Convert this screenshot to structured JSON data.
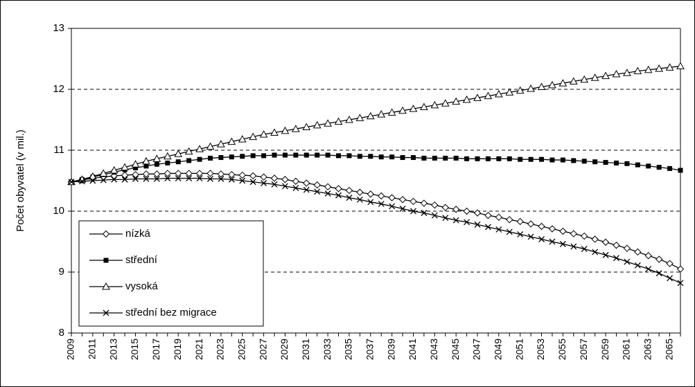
{
  "chart_data": {
    "type": "line",
    "ylabel": "Počet obyvatel (v mil.)",
    "categories": [
      "2009",
      null,
      "2011",
      null,
      "2013",
      null,
      "2015",
      null,
      "2017",
      null,
      "2019",
      null,
      "2021",
      null,
      "2023",
      null,
      "2025",
      null,
      "2027",
      null,
      "2029",
      null,
      "2031",
      null,
      "2033",
      null,
      "2035",
      null,
      "2037",
      null,
      "2039",
      null,
      "2041",
      null,
      "2043",
      null,
      "2045",
      null,
      "2047",
      null,
      "2049",
      null,
      "2051",
      null,
      "2053",
      null,
      "2055",
      null,
      "2057",
      null,
      "2059",
      null,
      "2061",
      null,
      "2063",
      null,
      "2065",
      null
    ],
    "ylim": [
      8,
      13
    ],
    "yticks": [
      8,
      9,
      10,
      11,
      12,
      13
    ],
    "grid": true,
    "legend": "lower left",
    "series": [
      {
        "name": "nízká",
        "color": "#000000",
        "marker": "diamond",
        "values": [
          10.48,
          10.51,
          10.54,
          10.56,
          10.58,
          10.59,
          10.6,
          10.61,
          10.61,
          10.62,
          10.62,
          10.62,
          10.62,
          10.62,
          10.61,
          10.6,
          10.59,
          10.58,
          10.56,
          10.54,
          10.52,
          10.49,
          10.46,
          10.43,
          10.4,
          10.37,
          10.34,
          10.31,
          10.28,
          10.25,
          10.22,
          10.19,
          10.16,
          10.13,
          10.1,
          10.06,
          10.03,
          10.0,
          9.97,
          9.93,
          9.9,
          9.86,
          9.83,
          9.79,
          9.75,
          9.71,
          9.67,
          9.63,
          9.59,
          9.54,
          9.49,
          9.44,
          9.39,
          9.33,
          9.27,
          9.21,
          9.14,
          9.05
        ]
      },
      {
        "name": "střední",
        "color": "#000000",
        "marker": "square",
        "values": [
          10.48,
          10.52,
          10.56,
          10.6,
          10.64,
          10.68,
          10.71,
          10.74,
          10.77,
          10.79,
          10.81,
          10.83,
          10.85,
          10.87,
          10.88,
          10.89,
          10.9,
          10.91,
          10.91,
          10.92,
          10.92,
          10.92,
          10.92,
          10.92,
          10.92,
          10.91,
          10.91,
          10.9,
          10.9,
          10.89,
          10.89,
          10.88,
          10.88,
          10.87,
          10.87,
          10.87,
          10.87,
          10.86,
          10.86,
          10.86,
          10.86,
          10.86,
          10.85,
          10.85,
          10.85,
          10.84,
          10.84,
          10.83,
          10.82,
          10.81,
          10.8,
          10.79,
          10.78,
          10.76,
          10.74,
          10.72,
          10.7,
          10.67
        ]
      },
      {
        "name": "vysoká",
        "color": "#000000",
        "marker": "triangle",
        "values": [
          10.48,
          10.52,
          10.57,
          10.62,
          10.67,
          10.72,
          10.77,
          10.82,
          10.86,
          10.9,
          10.94,
          10.98,
          11.02,
          11.06,
          11.1,
          11.14,
          11.18,
          11.22,
          11.26,
          11.29,
          11.32,
          11.35,
          11.38,
          11.41,
          11.44,
          11.47,
          11.5,
          11.53,
          11.56,
          11.59,
          11.62,
          11.65,
          11.68,
          11.71,
          11.74,
          11.77,
          11.8,
          11.83,
          11.86,
          11.89,
          11.92,
          11.95,
          11.98,
          12.01,
          12.04,
          12.07,
          12.1,
          12.13,
          12.16,
          12.19,
          12.22,
          12.25,
          12.27,
          12.3,
          12.32,
          12.34,
          12.36,
          12.38
        ]
      },
      {
        "name": "střední bez migrace",
        "color": "#000000",
        "marker": "x",
        "values": [
          10.48,
          10.49,
          10.5,
          10.51,
          10.52,
          10.52,
          10.53,
          10.53,
          10.53,
          10.54,
          10.54,
          10.54,
          10.54,
          10.53,
          10.53,
          10.52,
          10.5,
          10.48,
          10.46,
          10.44,
          10.41,
          10.38,
          10.35,
          10.32,
          10.29,
          10.26,
          10.22,
          10.19,
          10.15,
          10.12,
          10.08,
          10.04,
          10.0,
          9.97,
          9.93,
          9.89,
          9.85,
          9.82,
          9.78,
          9.74,
          9.7,
          9.66,
          9.62,
          9.58,
          9.54,
          9.5,
          9.46,
          9.42,
          9.38,
          9.33,
          9.28,
          9.23,
          9.17,
          9.11,
          9.05,
          8.98,
          8.9,
          8.82
        ]
      }
    ]
  }
}
